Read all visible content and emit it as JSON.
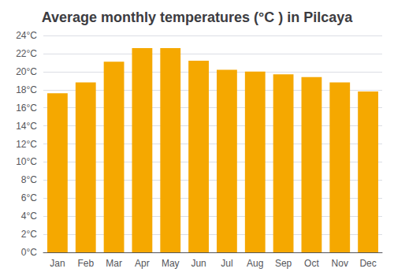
{
  "chart_data": {
    "type": "bar",
    "title": "Average monthly temperatures (°C ) in Pilcaya",
    "categories": [
      "Jan",
      "Feb",
      "Mar",
      "Apr",
      "May",
      "Jun",
      "Jul",
      "Aug",
      "Sep",
      "Oct",
      "Nov",
      "Dec"
    ],
    "values": [
      17.6,
      18.8,
      21.1,
      22.6,
      22.6,
      21.2,
      20.2,
      20.0,
      19.7,
      19.4,
      18.8,
      17.8
    ],
    "color": "#F5A800",
    "ylim": [
      0,
      24
    ],
    "yticks": [
      {
        "value": 0,
        "label": "0°C"
      },
      {
        "value": 2,
        "label": "2°C"
      },
      {
        "value": 4,
        "label": "4°C"
      },
      {
        "value": 6,
        "label": "6°C"
      },
      {
        "value": 8,
        "label": "8°C"
      },
      {
        "value": 10,
        "label": "10°C"
      },
      {
        "value": 12,
        "label": "12°C"
      },
      {
        "value": 14,
        "label": "14°C"
      },
      {
        "value": 16,
        "label": "16°C"
      },
      {
        "value": 18,
        "label": "18°C"
      },
      {
        "value": 20,
        "label": "20°C"
      },
      {
        "value": 22,
        "label": "22°C"
      },
      {
        "value": 24,
        "label": "24°C"
      }
    ],
    "grid": true
  }
}
